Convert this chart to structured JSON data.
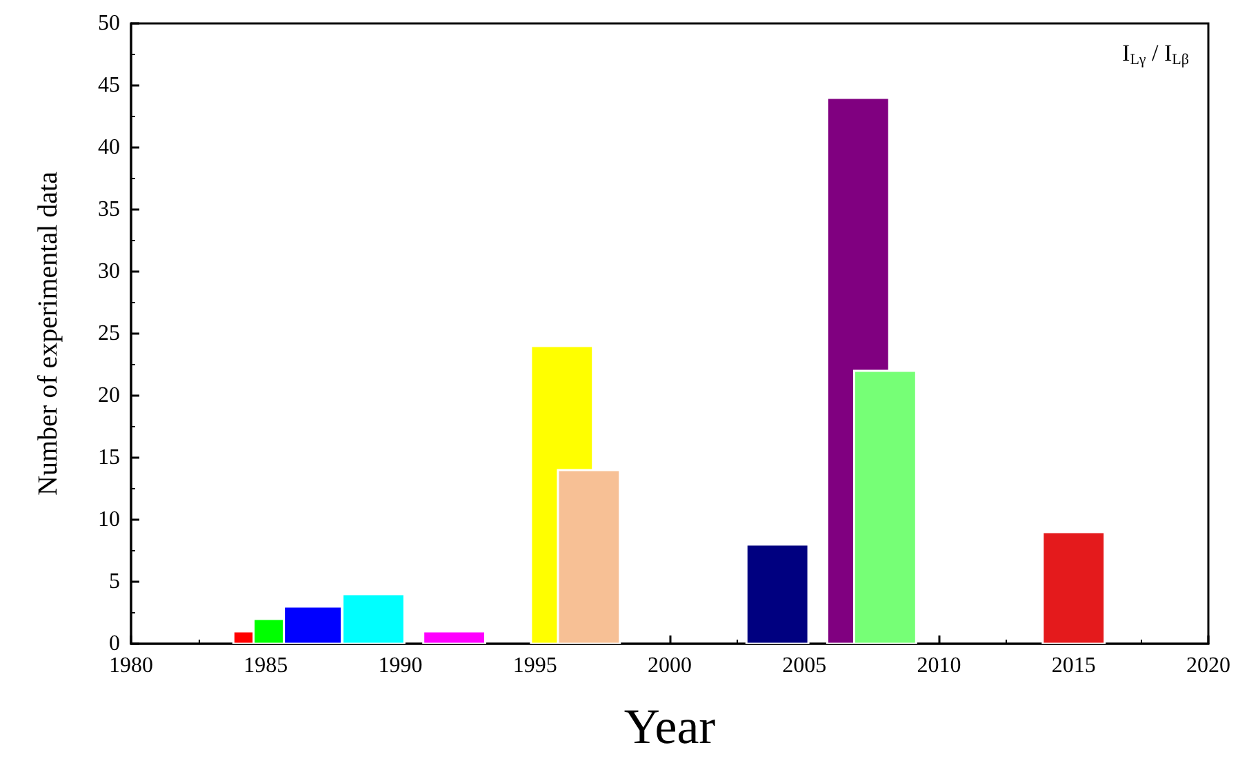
{
  "chart_data": {
    "type": "bar",
    "xlabel": "Year",
    "ylabel": "Number of experimental data",
    "annotations": [
      "I$_{Lγ}$ / I$_{Lβ}$"
    ],
    "x": [
      1984.25,
      1985.25,
      1986.75,
      1989,
      1992,
      1996,
      1997,
      2004,
      2007,
      2008,
      2015
    ],
    "values": [
      1,
      2,
      3,
      4,
      1,
      24,
      14,
      8,
      44,
      22,
      9
    ],
    "colors": [
      "#ff0000",
      "#00ff00",
      "#0000ff",
      "#00ffff",
      "#ff00ff",
      "#ffff00",
      "#f7c095",
      "#000080",
      "#800080",
      "#76ff76",
      "#e41a1c"
    ],
    "xlim": [
      1980,
      2020
    ],
    "xticks": [
      1980,
      1985,
      1990,
      1995,
      2000,
      2005,
      2010,
      2015,
      2020
    ],
    "ylim": [
      0,
      50
    ],
    "yticks": [
      0,
      5,
      10,
      15,
      20,
      25,
      30,
      35,
      40,
      45,
      50
    ],
    "grid": false
  }
}
